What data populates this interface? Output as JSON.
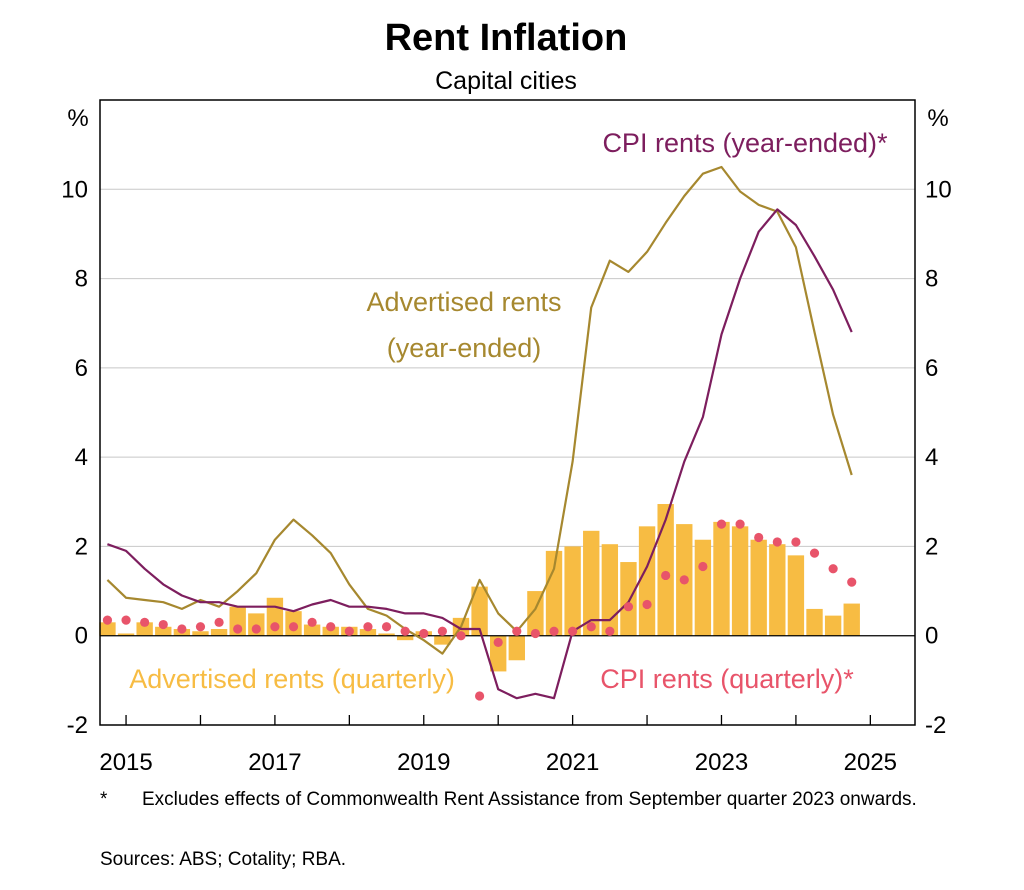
{
  "chart_data": {
    "type": "bar",
    "title": "Rent Inflation",
    "subtitle": "Capital cities",
    "y_unit_left": "%",
    "y_unit_right": "%",
    "ylim": [
      -2,
      12
    ],
    "yticks": [
      -2,
      0,
      2,
      4,
      6,
      8,
      10
    ],
    "xlim": [
      2014.65,
      2025.6
    ],
    "xticks": [
      2015,
      2017,
      2019,
      2021,
      2023,
      2025
    ],
    "xtick_labels": [
      "2015",
      "2017",
      "2019",
      "2021",
      "2023",
      "2025"
    ],
    "grid": true,
    "series": [
      {
        "name": "Advertised rents (quarterly)",
        "kind": "bar",
        "color": "#f7bc43",
        "x": [
          2014.75,
          2015.0,
          2015.25,
          2015.5,
          2015.75,
          2016.0,
          2016.25,
          2016.5,
          2016.75,
          2017.0,
          2017.25,
          2017.5,
          2017.75,
          2018.0,
          2018.25,
          2018.5,
          2018.75,
          2019.0,
          2019.25,
          2019.5,
          2019.75,
          2020.0,
          2020.25,
          2020.5,
          2020.75,
          2021.0,
          2021.25,
          2021.5,
          2021.75,
          2022.0,
          2022.25,
          2022.5,
          2022.75,
          2023.0,
          2023.25,
          2023.5,
          2023.75,
          2024.0,
          2024.25,
          2024.5,
          2024.75
        ],
        "values": [
          0.3,
          0.05,
          0.3,
          0.2,
          0.15,
          0.1,
          0.15,
          0.65,
          0.5,
          0.85,
          0.55,
          0.25,
          0.2,
          0.2,
          0.15,
          0.05,
          -0.1,
          0.1,
          -0.2,
          0.4,
          1.1,
          -0.8,
          -0.55,
          1.0,
          1.9,
          2.0,
          2.35,
          2.05,
          1.65,
          2.45,
          2.95,
          2.5,
          2.15,
          2.55,
          2.45,
          2.15,
          2.05,
          1.8,
          0.6,
          0.45,
          0.72
        ]
      },
      {
        "name": "CPI rents (quarterly)*",
        "kind": "dots",
        "color": "#e8546a",
        "x": [
          2014.75,
          2015.0,
          2015.25,
          2015.5,
          2015.75,
          2016.0,
          2016.25,
          2016.5,
          2016.75,
          2017.0,
          2017.25,
          2017.5,
          2017.75,
          2018.0,
          2018.25,
          2018.5,
          2018.75,
          2019.0,
          2019.25,
          2019.5,
          2019.75,
          2020.0,
          2020.25,
          2020.5,
          2020.75,
          2021.0,
          2021.25,
          2021.5,
          2021.75,
          2022.0,
          2022.25,
          2022.5,
          2022.75,
          2023.0,
          2023.25,
          2023.5,
          2023.75,
          2024.0,
          2024.25,
          2024.5,
          2024.75
        ],
        "values": [
          0.35,
          0.35,
          0.3,
          0.25,
          0.15,
          0.2,
          0.3,
          0.15,
          0.15,
          0.2,
          0.2,
          0.3,
          0.2,
          0.1,
          0.2,
          0.2,
          0.1,
          0.05,
          0.1,
          0.0,
          -1.35,
          -0.15,
          0.1,
          0.05,
          0.1,
          0.1,
          0.2,
          0.1,
          0.65,
          0.7,
          1.35,
          1.25,
          1.55,
          2.5,
          2.5,
          2.2,
          2.1,
          2.1,
          1.85,
          1.5,
          1.2
        ]
      },
      {
        "name": "Advertised rents (year-ended)",
        "kind": "line",
        "color": "#a6882f",
        "x": [
          2014.75,
          2015.0,
          2015.25,
          2015.5,
          2015.75,
          2016.0,
          2016.25,
          2016.5,
          2016.75,
          2017.0,
          2017.25,
          2017.5,
          2017.75,
          2018.0,
          2018.25,
          2018.5,
          2018.75,
          2019.0,
          2019.25,
          2019.5,
          2019.75,
          2020.0,
          2020.25,
          2020.5,
          2020.75,
          2021.0,
          2021.25,
          2021.5,
          2021.75,
          2022.0,
          2022.25,
          2022.5,
          2022.75,
          2023.0,
          2023.25,
          2023.5,
          2023.75,
          2024.0,
          2024.25,
          2024.5,
          2024.75
        ],
        "values": [
          1.25,
          0.85,
          0.8,
          0.75,
          0.6,
          0.8,
          0.65,
          1.0,
          1.4,
          2.15,
          2.6,
          2.25,
          1.85,
          1.15,
          0.6,
          0.45,
          0.15,
          -0.1,
          -0.4,
          0.2,
          1.25,
          0.5,
          0.1,
          0.6,
          1.5,
          3.9,
          7.35,
          8.4,
          8.15,
          8.6,
          9.25,
          9.85,
          10.35,
          10.5,
          9.95,
          9.65,
          9.5,
          8.7,
          6.8,
          4.95,
          3.6
        ]
      },
      {
        "name": "CPI rents (year-ended)*",
        "kind": "line",
        "color": "#7d1e5e",
        "x": [
          2014.75,
          2015.0,
          2015.25,
          2015.5,
          2015.75,
          2016.0,
          2016.25,
          2016.5,
          2016.75,
          2017.0,
          2017.25,
          2017.5,
          2017.75,
          2018.0,
          2018.25,
          2018.5,
          2018.75,
          2019.0,
          2019.25,
          2019.5,
          2019.75,
          2020.0,
          2020.25,
          2020.5,
          2020.75,
          2021.0,
          2021.25,
          2021.5,
          2021.75,
          2022.0,
          2022.25,
          2022.5,
          2022.75,
          2023.0,
          2023.25,
          2023.5,
          2023.75,
          2024.0,
          2024.25,
          2024.5,
          2024.75
        ],
        "values": [
          2.05,
          1.9,
          1.5,
          1.15,
          0.9,
          0.75,
          0.75,
          0.65,
          0.65,
          0.65,
          0.55,
          0.7,
          0.8,
          0.65,
          0.65,
          0.6,
          0.5,
          0.5,
          0.4,
          0.15,
          0.15,
          -1.2,
          -1.4,
          -1.3,
          -1.4,
          0.1,
          0.35,
          0.35,
          0.75,
          1.55,
          2.6,
          3.9,
          4.9,
          6.75,
          8.0,
          9.05,
          9.55,
          9.2,
          8.5,
          7.75,
          6.8
        ]
      }
    ],
    "annotations": [
      {
        "text": "CPI rents (year-ended)*",
        "color": "#7d1e5e"
      },
      {
        "text": "Advertised rents",
        "color": "#a6882f"
      },
      {
        "text": "(year-ended)",
        "color": "#a6882f"
      },
      {
        "text": "Advertised rents (quarterly)",
        "color": "#f7bc43"
      },
      {
        "text": "CPI rents (quarterly)*",
        "color": "#e8546a"
      }
    ]
  },
  "footnotes": {
    "star": "*",
    "note": "Excludes effects of Commonwealth Rent Assistance from September quarter 2023 onwards.",
    "sources": "Sources:  ABS; Cotality; RBA."
  }
}
